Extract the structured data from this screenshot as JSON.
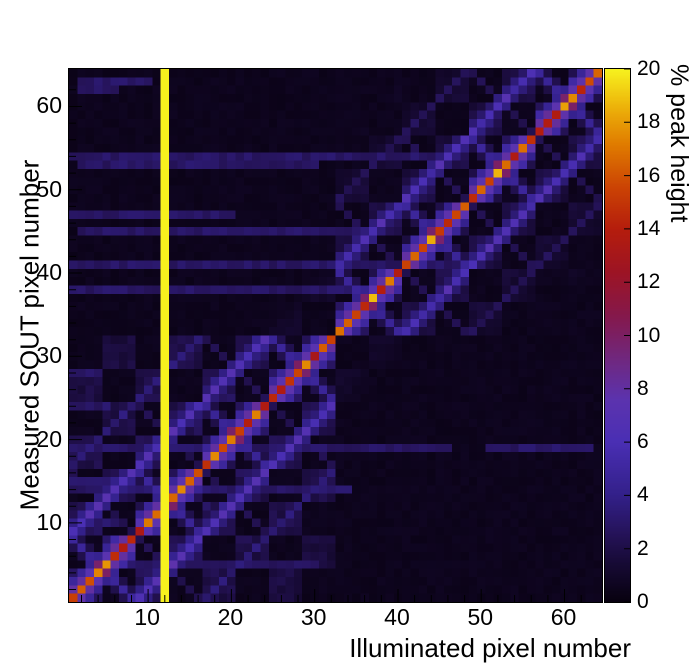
{
  "chart_data": {
    "type": "heatmap",
    "title": "",
    "xlabel": "Illuminated pixel number",
    "ylabel": "Measured SOUT pixel number",
    "zlabel": "% peak height",
    "xlim": [
      1,
      64
    ],
    "ylim": [
      1,
      64
    ],
    "zlim": [
      0,
      20
    ],
    "x_major_ticks": [
      10,
      20,
      30,
      40,
      50,
      60
    ],
    "y_major_ticks": [
      10,
      20,
      30,
      40,
      50,
      60
    ],
    "minor_tick_step": 2,
    "z_ticks": [
      0,
      2,
      4,
      6,
      8,
      10,
      12,
      14,
      16,
      18,
      20
    ],
    "grid": false,
    "legend": "colorbar-right",
    "background": "#ffffff",
    "palette": [
      [
        0.0,
        "#080110"
      ],
      [
        0.07,
        "#170a35"
      ],
      [
        0.12,
        "#241255"
      ],
      [
        0.2,
        "#33208a"
      ],
      [
        0.3,
        "#4a2fb4"
      ],
      [
        0.38,
        "#5c33ae"
      ],
      [
        0.46,
        "#71277c"
      ],
      [
        0.54,
        "#86184a"
      ],
      [
        0.62,
        "#9d1424"
      ],
      [
        0.7,
        "#b51d0d"
      ],
      [
        0.78,
        "#cc4404"
      ],
      [
        0.86,
        "#e07c00"
      ],
      [
        0.93,
        "#edb20a"
      ],
      [
        1.0,
        "#f7f11e"
      ]
    ],
    "pattern": {
      "description": "64x64 pixel crosstalk matrix: bright red main diagonal organized in 8-pixel blocks with crossing anti-diagonal X structure, low-level 4x4 checkerboard crosstalk within each 32-pixel quadrant, one saturated (20%) column at illuminated pixel 12, and sparse faint horizontal stripes at certain measured pixels",
      "base": 0.3,
      "noise": 0.35,
      "checker_value": 2.1,
      "checker_fade_lower": 60,
      "checker_fade_upper": 24,
      "checker_bridge": 12,
      "block": 8,
      "diag_main": 10.5,
      "diag_jitter": 4.5,
      "diag_near": 5.2,
      "diag_far": 2.2,
      "anti_main": 4.2,
      "anti_near": 1.6,
      "nbr_diag": 3.4,
      "nbr_jitter": 1.6,
      "nbr_near": 1.4,
      "nbr_anti": 1.8,
      "far_diag": 1.3,
      "stripe_value": 2.4,
      "hot_column": 12,
      "stripes": [
        [
          5,
          3,
          30
        ],
        [
          10,
          1,
          6
        ],
        [
          14,
          1,
          34
        ],
        [
          15,
          1,
          8
        ],
        [
          19,
          1,
          46
        ],
        [
          19,
          51,
          63
        ],
        [
          24,
          1,
          5
        ],
        [
          28,
          1,
          4
        ],
        [
          38,
          1,
          40
        ],
        [
          41,
          1,
          48
        ],
        [
          45,
          2,
          36
        ],
        [
          47,
          1,
          20
        ],
        [
          53,
          2,
          30
        ],
        [
          54,
          1,
          46
        ],
        [
          62,
          2,
          6
        ],
        [
          63,
          2,
          10
        ]
      ]
    }
  }
}
